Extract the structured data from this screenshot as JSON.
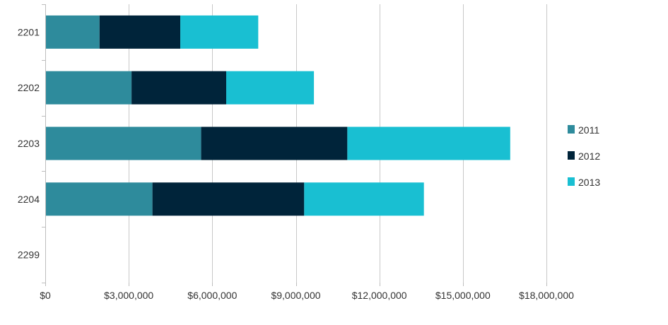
{
  "chart_data": {
    "type": "bar",
    "orientation": "horizontal",
    "stacked": true,
    "categories": [
      "2201",
      "2202",
      "2203",
      "2204",
      "2299"
    ],
    "series": [
      {
        "name": "2011",
        "color": "#2e8b9c",
        "values": [
          1950000,
          3100000,
          5600000,
          3850000,
          0
        ]
      },
      {
        "name": "2012",
        "color": "#00243a",
        "values": [
          2900000,
          3400000,
          5250000,
          5450000,
          0
        ]
      },
      {
        "name": "2013",
        "color": "#19bfd2",
        "values": [
          2800000,
          3150000,
          5850000,
          4300000,
          0
        ]
      }
    ],
    "xlim": [
      0,
      18000000
    ],
    "xticks": [
      0,
      3000000,
      6000000,
      9000000,
      12000000,
      15000000,
      18000000
    ],
    "xtick_labels": [
      "$0",
      "$3,000,000",
      "$6,000,000",
      "$9,000,000",
      "$12,000,000",
      "$15,000,000",
      "$18,000,000"
    ],
    "grid": true,
    "legend_position": "right",
    "title": "",
    "xlabel": "",
    "ylabel": ""
  }
}
